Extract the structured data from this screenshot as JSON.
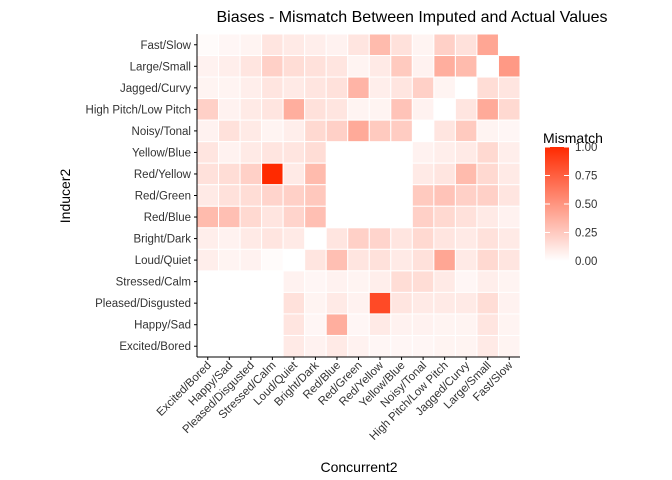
{
  "chart_data": {
    "type": "heatmap",
    "title": "Biases - Mismatch Between Imputed and Actual Values",
    "xlabel": "Concurrent2",
    "ylabel": "Inducer2",
    "x_categories": [
      "Excited/Bored",
      "Happy/Sad",
      "Pleased/Disgusted",
      "Stressed/Calm",
      "Loud/Quiet",
      "Bright/Dark",
      "Red/Blue",
      "Red/Green",
      "Red/Yellow",
      "Yellow/Blue",
      "Noisy/Tonal",
      "High Pitch/Low Pitch",
      "Jagged/Curvy",
      "Large/Small",
      "Fast/Slow"
    ],
    "y_categories": [
      "Fast/Slow",
      "Large/Small",
      "Jagged/Curvy",
      "High Pitch/Low Pitch",
      "Noisy/Tonal",
      "Yellow/Blue",
      "Red/Yellow",
      "Red/Green",
      "Red/Blue",
      "Bright/Dark",
      "Loud/Quiet",
      "Stressed/Calm",
      "Pleased/Disgusted",
      "Happy/Sad",
      "Excited/Bored"
    ],
    "values": [
      [
        0.02,
        0.04,
        0.05,
        0.12,
        0.1,
        0.08,
        0.06,
        0.12,
        0.32,
        0.14,
        0.05,
        0.22,
        0.14,
        0.42,
        null
      ],
      [
        0.06,
        0.08,
        0.12,
        0.22,
        0.16,
        0.14,
        0.12,
        0.05,
        0.1,
        0.25,
        0.06,
        0.38,
        0.32,
        null,
        0.48
      ],
      [
        0.05,
        0.05,
        0.08,
        0.12,
        0.1,
        0.12,
        0.14,
        0.35,
        0.08,
        0.12,
        0.22,
        0.05,
        null,
        0.16,
        0.12
      ],
      [
        0.22,
        0.06,
        0.1,
        0.12,
        0.38,
        0.14,
        0.12,
        0.05,
        0.05,
        0.28,
        0.06,
        null,
        0.12,
        0.4,
        0.18
      ],
      [
        0.06,
        0.14,
        0.1,
        0.05,
        0.08,
        0.18,
        0.22,
        0.4,
        0.25,
        0.24,
        null,
        0.12,
        0.25,
        0.05,
        0.04
      ],
      [
        0.12,
        0.06,
        0.1,
        0.12,
        0.12,
        0.16,
        null,
        null,
        null,
        null,
        0.06,
        0.08,
        0.1,
        0.18,
        0.08
      ],
      [
        0.14,
        0.16,
        0.22,
        1.0,
        0.1,
        0.32,
        null,
        null,
        null,
        null,
        0.1,
        0.12,
        0.32,
        0.18,
        0.1
      ],
      [
        0.1,
        0.14,
        0.16,
        0.2,
        0.22,
        0.26,
        null,
        null,
        null,
        null,
        0.25,
        0.28,
        0.22,
        0.22,
        0.12
      ],
      [
        0.32,
        0.3,
        0.18,
        0.12,
        0.2,
        0.3,
        null,
        null,
        null,
        null,
        0.22,
        0.18,
        0.14,
        0.1,
        0.06
      ],
      [
        0.08,
        0.06,
        0.1,
        0.12,
        0.1,
        null,
        0.12,
        0.22,
        0.2,
        0.12,
        0.18,
        0.12,
        0.1,
        0.14,
        0.1
      ],
      [
        0.08,
        0.05,
        0.06,
        0.02,
        null,
        0.12,
        0.3,
        0.12,
        0.14,
        0.1,
        0.14,
        0.42,
        0.1,
        0.18,
        0.12
      ],
      [
        null,
        null,
        null,
        null,
        0.06,
        0.04,
        0.06,
        0.05,
        0.08,
        0.16,
        0.16,
        0.1,
        0.04,
        0.08,
        0.05
      ],
      [
        null,
        null,
        null,
        null,
        0.14,
        0.05,
        0.1,
        0.06,
        0.85,
        0.12,
        0.1,
        0.1,
        0.1,
        0.16,
        0.06
      ],
      [
        null,
        null,
        null,
        null,
        0.12,
        0.04,
        0.38,
        0.04,
        0.1,
        0.06,
        0.06,
        0.05,
        0.05,
        0.12,
        0.05
      ],
      [
        null,
        null,
        null,
        null,
        0.1,
        0.06,
        0.1,
        0.06,
        0.04,
        0.04,
        0.04,
        0.05,
        0.05,
        0.1,
        0.05
      ]
    ],
    "colorbar": {
      "title": "Mismatch",
      "ticks": [
        "0.00",
        "0.25",
        "0.50",
        "0.75",
        "1.00"
      ],
      "range": [
        0,
        1
      ],
      "low_color": "#ffffff",
      "high_color": "#ff2a00"
    },
    "legend_position": "right",
    "grid": false
  }
}
